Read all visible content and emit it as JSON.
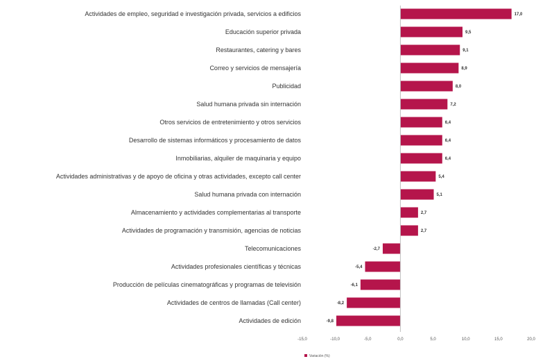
{
  "chart_data": {
    "type": "bar",
    "orientation": "horizontal",
    "title": "",
    "xlabel": "",
    "ylabel": "",
    "categories": [
      "Actividades de empleo, seguridad e investigación privada, servicios a edificios",
      "Educación superior privada",
      "Restaurantes, catering y bares",
      "Correo y servicios de mensajería",
      "Publicidad",
      "Salud humana privada sin internación",
      "Otros servicios de entretenimiento y otros servicios",
      "Desarrollo de sistemas informáticos y procesamiento de datos",
      "Inmobiliarias, alquiler de maquinaria y equipo",
      "Actividades administrativas y de apoyo de oficina y otras actividades, excepto call center",
      "Salud humana privada con internación",
      "Almacenamiento y actividades complementarias al transporte",
      "Actividades de programación y transmisión, agencias de noticias",
      "Telecomunicaciones",
      "Actividades profesionales científicas y técnicas",
      "Producción de películas cinematográficas y programas de televisión",
      "Actividades de centros de llamadas (Call center)",
      "Actividades de edición"
    ],
    "values": [
      17.0,
      9.5,
      9.1,
      8.9,
      8.0,
      7.2,
      6.4,
      6.4,
      6.4,
      5.4,
      5.1,
      2.7,
      2.7,
      -2.7,
      -5.4,
      -6.1,
      -8.2,
      -9.8
    ],
    "value_labels": [
      "17,0",
      "9,5",
      "9,1",
      "8,9",
      "8,0",
      "7,2",
      "6,4",
      "6,4",
      "6,4",
      "5,4",
      "5,1",
      "2,7",
      "2,7",
      "-2,7",
      "-5,4",
      "-6,1",
      "-8,2",
      "-9,8"
    ],
    "xlim": [
      -15,
      20
    ],
    "xticks": [
      -15,
      -10,
      -5,
      0,
      5,
      10,
      15,
      20
    ],
    "xtick_labels": [
      "-15,0",
      "-10,0",
      "-5,0",
      "0,0",
      "5,0",
      "10,0",
      "15,0",
      "20,0"
    ],
    "grid": false,
    "legend": {
      "position": "bottom-left",
      "entries": [
        "Variación (%)"
      ]
    },
    "bar_color": "#b5154b"
  }
}
